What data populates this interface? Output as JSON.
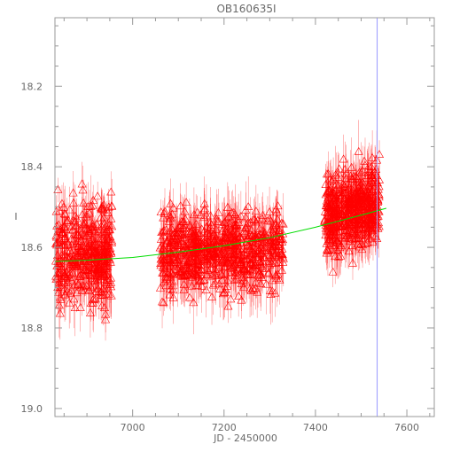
{
  "chart_data": {
    "type": "scatter",
    "title": "OB160635I",
    "xlabel": "JD - 2450000",
    "ylabel": "I",
    "xlim": [
      6830,
      7660
    ],
    "ylim": [
      19.02,
      18.03
    ],
    "y_inverted": true,
    "xticks": [
      7000,
      7200,
      7400,
      7600
    ],
    "yticks": [
      18.2,
      18.4,
      18.6,
      18.8,
      19.0
    ],
    "marker": "open-triangle",
    "colors": {
      "points": "#ff0000",
      "errorbars": "#ff0000",
      "model": "#00dd00",
      "marker_line": "#9999ff",
      "axes": "#999999",
      "text": "#6a6a6a"
    },
    "series": [
      {
        "type": "errorbar",
        "clusters": [
          {
            "x_range": [
              6832,
              6955
            ],
            "y_mean": 18.62,
            "y_spread": 0.06,
            "err": 0.05,
            "n": 420
          },
          {
            "x_range": [
              7060,
              7330
            ],
            "y_mean": 18.61,
            "y_spread": 0.05,
            "err": 0.05,
            "n": 760
          },
          {
            "x_range": [
              7420,
              7540
            ],
            "y_mean": 18.53,
            "y_spread": 0.05,
            "err": 0.05,
            "n": 520
          }
        ]
      },
      {
        "type": "line",
        "x": [
          6830,
          6900,
          7000,
          7100,
          7200,
          7300,
          7400,
          7500,
          7555
        ],
        "y": [
          18.635,
          18.632,
          18.625,
          18.612,
          18.596,
          18.576,
          18.55,
          18.52,
          18.503
        ]
      }
    ],
    "vline_x": 7535,
    "grid": false
  }
}
